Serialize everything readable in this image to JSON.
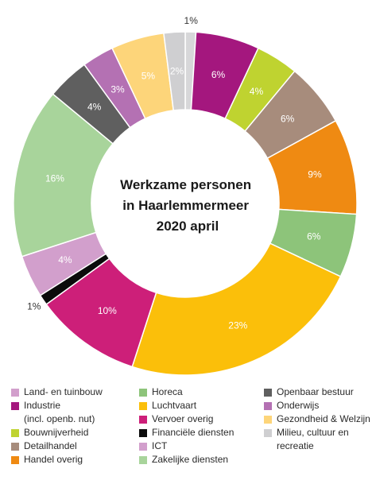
{
  "chart_data": {
    "type": "pie",
    "donut": true,
    "title": "Werkzame personen in Haarlemmermeer 2020 april",
    "title_lines": [
      "Werkzame personen",
      "in Haarlemmermeer",
      "2020 april"
    ],
    "unit": "%",
    "slices": [
      {
        "name": "Milieu, cultuur en recreatie",
        "label": "1%",
        "value": 1,
        "color": "#d7d7d9",
        "label_color": "#333333",
        "label_outside": true
      },
      {
        "name": "Industrie (incl. openb. nut)",
        "label": "6%",
        "value": 6,
        "color": "#a4177e",
        "label_color": "#ffffff"
      },
      {
        "name": "Bouwnijverheid",
        "label": "4%",
        "value": 4,
        "color": "#bfd330",
        "label_color": "#ffffff"
      },
      {
        "name": "Detailhandel",
        "label": "6%",
        "value": 6,
        "color": "#a78c7c",
        "label_color": "#ffffff"
      },
      {
        "name": "Handel overig",
        "label": "9%",
        "value": 9,
        "color": "#ef8a12",
        "label_color": "#ffffff"
      },
      {
        "name": "Horeca",
        "label": "6%",
        "value": 6,
        "color": "#8dc47a",
        "label_color": "#ffffff"
      },
      {
        "name": "Luchtvaart",
        "label": "23%",
        "value": 23,
        "color": "#fbbf0a",
        "label_color": "#ffffff"
      },
      {
        "name": "Vervoer overig",
        "label": "10%",
        "value": 10,
        "color": "#cd1f79",
        "label_color": "#ffffff"
      },
      {
        "name": "Financiële diensten",
        "label": "1%",
        "value": 1,
        "color": "#0b0b0b",
        "label_color": "#333333",
        "label_outside": true
      },
      {
        "name": "ICT",
        "label": "4%",
        "value": 4,
        "color": "#d29fcc",
        "label_color": "#ffffff"
      },
      {
        "name": "Zakelijke diensten",
        "label": "16%",
        "value": 16,
        "color": "#a8d49b",
        "label_color": "#ffffff"
      },
      {
        "name": "Openbaar bestuur",
        "label": "4%",
        "value": 4,
        "color": "#5f5f5f",
        "label_color": "#ffffff"
      },
      {
        "name": "Onderwijs",
        "label": "3%",
        "value": 3,
        "color": "#b471b3",
        "label_color": "#ffffff"
      },
      {
        "name": "Gezondheid & Welzijn",
        "label": "5%",
        "value": 5,
        "color": "#fdd57a",
        "label_color": "#ffffff"
      },
      {
        "name": "Milieu, cultuur en recreatie",
        "label": "2%",
        "value": 2,
        "color": "#cfcfd1",
        "label_color": "#ffffff"
      }
    ],
    "legend": {
      "columns": [
        [
          {
            "label": "Land- en tuinbouw",
            "color": "#d29fcc"
          },
          {
            "label": "Industrie\n(incl. openb. nut)",
            "color": "#a4177e"
          },
          {
            "label": "Bouwnijverheid",
            "color": "#bfd330"
          },
          {
            "label": "Detailhandel",
            "color": "#a78c7c"
          },
          {
            "label": "Handel overig",
            "color": "#ef8a12"
          }
        ],
        [
          {
            "label": "Horeca",
            "color": "#8dc47a"
          },
          {
            "label": "Luchtvaart",
            "color": "#fbbf0a"
          },
          {
            "label": "Vervoer overig",
            "color": "#cd1f79"
          },
          {
            "label": "Financiële diensten",
            "color": "#0b0b0b"
          },
          {
            "label": "ICT",
            "color": "#d29fcc"
          },
          {
            "label": "Zakelijke diensten",
            "color": "#a8d49b"
          }
        ],
        [
          {
            "label": "Openbaar bestuur",
            "color": "#5f5f5f"
          },
          {
            "label": "Onderwijs",
            "color": "#b471b3"
          },
          {
            "label": "Gezondheid & Welzijn",
            "color": "#fdd57a"
          },
          {
            "label": "Milieu, cultuur en\nrecreatie",
            "color": "#cfcfd1"
          }
        ]
      ]
    }
  }
}
